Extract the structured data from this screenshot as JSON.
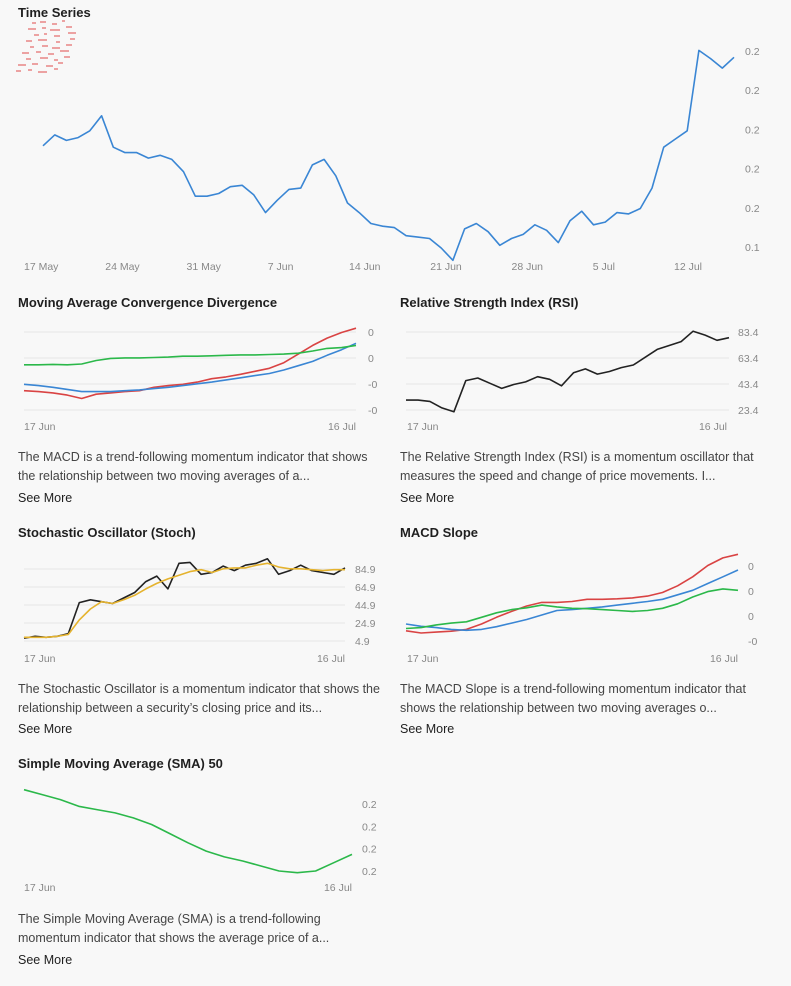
{
  "time_series": {
    "title": "Time Series",
    "chart_data": {
      "type": "line",
      "title": "Time Series",
      "x_labels": [
        "17 May",
        "24 May",
        "31 May",
        "7 Jun",
        "14 Jun",
        "21 Jun",
        "28 Jun",
        "5 Jul",
        "12 Jul"
      ],
      "y_tick_labels": [
        "0.2",
        "0.2",
        "0.2",
        "0.2",
        "0.2",
        "0.1"
      ],
      "ylim": [
        0.1,
        0.26
      ],
      "grid": false,
      "series": [
        {
          "color": "#3a86d4",
          "values": [
            0.175,
            0.183,
            0.179,
            0.181,
            0.186,
            0.197,
            0.174,
            0.17,
            0.17,
            0.166,
            0.168,
            0.165,
            0.156,
            0.138,
            0.138,
            0.14,
            0.145,
            0.146,
            0.139,
            0.126,
            0.135,
            0.143,
            0.144,
            0.161,
            0.165,
            0.153,
            0.133,
            0.126,
            0.118,
            0.116,
            0.115,
            0.109,
            0.108,
            0.107,
            0.1,
            0.091,
            0.114,
            0.118,
            0.112,
            0.102,
            0.107,
            0.11,
            0.117,
            0.113,
            0.104,
            0.12,
            0.127,
            0.117,
            0.119,
            0.126,
            0.125,
            0.129,
            0.144,
            0.174,
            0.18,
            0.186,
            0.245,
            0.239,
            0.232,
            0.24
          ]
        }
      ]
    }
  },
  "macd": {
    "title": "Moving Average Convergence Divergence",
    "description": "The MACD is a trend-following momentum indicator that shows the relationship between two moving averages of a...",
    "see_more": "See More",
    "chart_data": {
      "type": "line",
      "title": "Moving Average Convergence Divergence",
      "x_labels": [
        "17 Jun",
        "16 Jul"
      ],
      "y_tick_labels": [
        "0",
        "0",
        "-0",
        "-0"
      ],
      "ylim": [
        -0.9,
        1.0
      ],
      "grid": true,
      "series": [
        {
          "color": "#d94343",
          "values": [
            -0.5,
            -0.52,
            -0.55,
            -0.6,
            -0.68,
            -0.58,
            -0.55,
            -0.52,
            -0.5,
            -0.42,
            -0.38,
            -0.35,
            -0.3,
            -0.22,
            -0.18,
            -0.12,
            -0.05,
            0.02,
            0.15,
            0.35,
            0.55,
            0.72,
            0.85,
            0.95
          ]
        },
        {
          "color": "#3a86d4",
          "values": [
            -0.35,
            -0.38,
            -0.42,
            -0.47,
            -0.52,
            -0.52,
            -0.52,
            -0.5,
            -0.48,
            -0.45,
            -0.42,
            -0.38,
            -0.34,
            -0.3,
            -0.25,
            -0.2,
            -0.15,
            -0.1,
            -0.02,
            0.08,
            0.18,
            0.32,
            0.45,
            0.6
          ]
        },
        {
          "color": "#2bb84a",
          "values": [
            0.1,
            0.1,
            0.11,
            0.1,
            0.12,
            0.2,
            0.25,
            0.26,
            0.26,
            0.27,
            0.28,
            0.3,
            0.3,
            0.31,
            0.32,
            0.33,
            0.33,
            0.34,
            0.35,
            0.37,
            0.42,
            0.48,
            0.5,
            0.55
          ]
        }
      ]
    }
  },
  "rsi": {
    "title": "Relative Strength Index (RSI)",
    "description": "The Relative Strength Index (RSI) is a momentum oscillator that measures the speed and change of price movements. I...",
    "see_more": "See More",
    "chart_data": {
      "type": "line",
      "title": "Relative Strength Index (RSI)",
      "x_labels": [
        "17 Jun",
        "16 Jul"
      ],
      "y_tick_labels": [
        "83.4",
        "63.4",
        "43.4",
        "23.4"
      ],
      "ylim": [
        23.4,
        83.4
      ],
      "grid": true,
      "series": [
        {
          "color": "#222222",
          "values": [
            31,
            31,
            30,
            25,
            22,
            46,
            48,
            44,
            40,
            43,
            45,
            49,
            47,
            42,
            52,
            55,
            51,
            53,
            56,
            58,
            64,
            70,
            73,
            76,
            84,
            81,
            77,
            79
          ]
        }
      ]
    }
  },
  "stoch": {
    "title": "Stochastic Oscillator (Stoch)",
    "description": "The Stochastic Oscillator is a momentum indicator that shows the relationship between a security’s closing price and its...",
    "see_more": "See More",
    "chart_data": {
      "type": "line",
      "title": "Stochastic Oscillator (Stoch)",
      "x_labels": [
        "17 Jun",
        "16 Jul"
      ],
      "y_tick_labels": [
        "84.9",
        "64.9",
        "44.9",
        "24.9",
        "4.9"
      ],
      "ylim": [
        4.9,
        84.9
      ],
      "grid": true,
      "series": [
        {
          "color": "#222222",
          "values": [
            8,
            10,
            9,
            10,
            13,
            47,
            50,
            48,
            46,
            52,
            58,
            70,
            76,
            62,
            90,
            91,
            78,
            80,
            87,
            82,
            88,
            90,
            95,
            78,
            82,
            88,
            82,
            80,
            78,
            85
          ]
        },
        {
          "color": "#e5b32e",
          "values": [
            9,
            9,
            9,
            10,
            12,
            28,
            40,
            48,
            46,
            50,
            55,
            62,
            68,
            73,
            77,
            81,
            83,
            80,
            84,
            85,
            85,
            88,
            90,
            86,
            84,
            84,
            83,
            82,
            83,
            83
          ]
        }
      ]
    }
  },
  "macd_slope": {
    "title": "MACD Slope",
    "description": "The MACD Slope is a trend-following momentum indicator that shows the relationship between two moving averages o...",
    "see_more": "See More",
    "chart_data": {
      "type": "line",
      "title": "MACD Slope",
      "x_labels": [
        "17 Jun",
        "16 Jul"
      ],
      "y_tick_labels": [
        "0",
        "0",
        "0",
        "-0"
      ],
      "ylim": [
        -1.0,
        1.0
      ],
      "grid": false,
      "series": [
        {
          "color": "#d94343",
          "values": [
            -0.75,
            -0.8,
            -0.78,
            -0.76,
            -0.72,
            -0.6,
            -0.45,
            -0.32,
            -0.2,
            -0.12,
            -0.12,
            -0.1,
            -0.05,
            -0.05,
            -0.04,
            -0.02,
            0.02,
            0.1,
            0.25,
            0.45,
            0.7,
            0.87,
            0.95
          ]
        },
        {
          "color": "#3a86d4",
          "values": [
            -0.6,
            -0.65,
            -0.68,
            -0.72,
            -0.74,
            -0.72,
            -0.66,
            -0.58,
            -0.5,
            -0.4,
            -0.3,
            -0.28,
            -0.25,
            -0.22,
            -0.18,
            -0.14,
            -0.1,
            -0.05,
            0.05,
            0.15,
            0.3,
            0.45,
            0.6
          ]
        },
        {
          "color": "#2bb84a",
          "values": [
            -0.7,
            -0.68,
            -0.62,
            -0.58,
            -0.55,
            -0.45,
            -0.35,
            -0.28,
            -0.24,
            -0.18,
            -0.22,
            -0.25,
            -0.26,
            -0.28,
            -0.3,
            -0.32,
            -0.3,
            -0.25,
            -0.15,
            0.0,
            0.12,
            0.18,
            0.15
          ]
        }
      ]
    }
  },
  "sma": {
    "title": "Simple Moving Average (SMA) 50",
    "description": "The Simple Moving Average (SMA) is a trend-following momentum indicator that shows the average price of a...",
    "see_more": "See More",
    "chart_data": {
      "type": "line",
      "title": "Simple Moving Average (SMA) 50",
      "x_labels": [
        "17 Jun",
        "16 Jul"
      ],
      "y_tick_labels": [
        "0.2",
        "0.2",
        "0.2",
        "0.2"
      ],
      "ylim": [
        0.0,
        1.0
      ],
      "grid": false,
      "series": [
        {
          "color": "#2bb84a",
          "values": [
            0.98,
            0.92,
            0.86,
            0.78,
            0.74,
            0.7,
            0.64,
            0.56,
            0.45,
            0.34,
            0.24,
            0.17,
            0.12,
            0.06,
            0.0,
            -0.02,
            0.0,
            0.1,
            0.2
          ]
        }
      ]
    }
  }
}
